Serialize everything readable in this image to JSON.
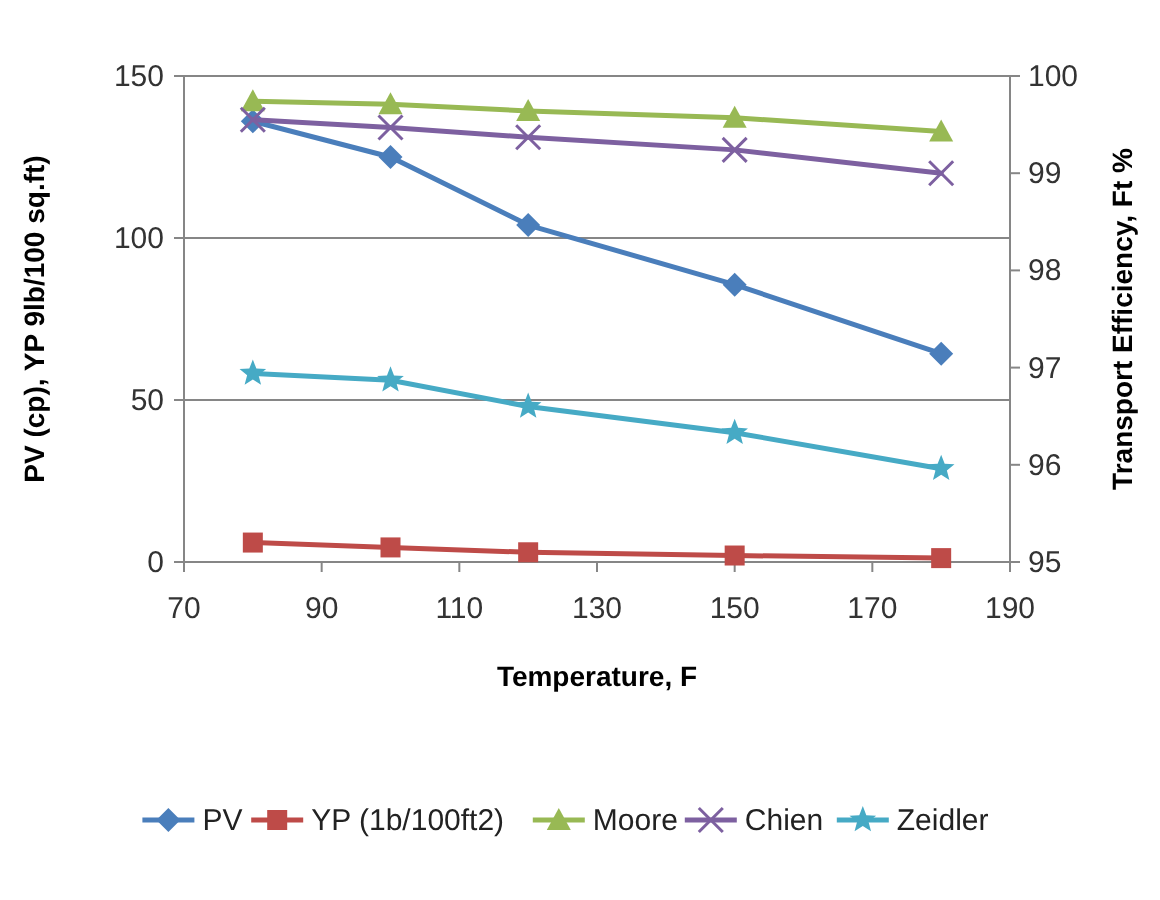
{
  "chart_data": {
    "type": "line",
    "xlabel": "Temperature, F",
    "ylabel": "PV (cp), YP 9lb/100 sq.ft)",
    "y2label": "Transport  Efficiency, Ft %",
    "x": [
      80,
      100,
      120,
      150,
      180
    ],
    "xlim": [
      70,
      190
    ],
    "xticks": [
      70,
      90,
      110,
      130,
      150,
      170,
      190
    ],
    "ylim": [
      0,
      150
    ],
    "yticks": [
      0,
      50,
      100,
      150
    ],
    "y2lim": [
      95,
      100
    ],
    "y2ticks": [
      95,
      96,
      97,
      98,
      99,
      100
    ],
    "grid": "y",
    "legend": "bottom",
    "series": [
      {
        "name": "PV",
        "color": "#4a7ebb",
        "marker": "diamond",
        "values": [
          136,
          125,
          104,
          85.6,
          64.3
        ]
      },
      {
        "name": "YP (1b/100ft2)",
        "color": "#be4b48",
        "marker": "square",
        "values": [
          6,
          4.5,
          3,
          2,
          1.2
        ]
      },
      {
        "name": "Moore",
        "color": "#98b954",
        "marker": "triangle",
        "axis": "y2",
        "values": [
          99.74,
          99.71,
          99.64,
          99.57,
          99.43
        ]
      },
      {
        "name": "Chien",
        "color": "#7d60a0",
        "marker": "cross",
        "axis": "y2",
        "values": [
          99.55,
          99.47,
          99.37,
          99.24,
          99.0
        ]
      },
      {
        "name": "Zeidler",
        "color": "#46aac5",
        "marker": "star",
        "axis": "y2",
        "values": [
          96.94,
          96.87,
          96.6,
          96.33,
          95.96
        ]
      }
    ]
  }
}
